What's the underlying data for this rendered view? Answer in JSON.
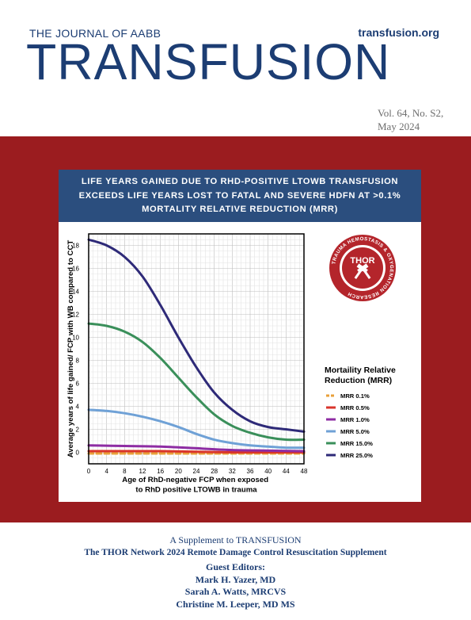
{
  "journal_label": "THE JOURNAL OF AABB",
  "website": "transfusion.org",
  "masthead": "TRANSFUSION",
  "issue": {
    "volume": "Vol. 64, No. S2,",
    "date": "May 2024"
  },
  "banner": {
    "lines": [
      "LIFE YEARS GAINED DUE TO RHD-POSITIVE LTOWB TRANSFUSION",
      "EXCEEDS LIFE YEARS LOST TO FATAL AND SEVERE HDFN AT >0.1%",
      "MORTALITY RELATIVE REDUCTION (MRR)"
    ]
  },
  "logo": {
    "center": "THOR",
    "ring": "TRAUMA HEMOSTASIS & OXYGENATION RESEARCH",
    "colors": {
      "ring": "#b4252b",
      "inner": "#ffffff"
    }
  },
  "chart_data": {
    "type": "line",
    "ylabel": "Average years of life gained/ FCP with WB compared to CCT",
    "xlabel_lines": [
      "Age of RhD-negative FCP when exposed",
      "to RhD positive LTOWB in trauma"
    ],
    "xlim": [
      0,
      48
    ],
    "ylim": [
      -1,
      19
    ],
    "xticks": [
      0,
      4,
      8,
      12,
      16,
      20,
      24,
      28,
      32,
      36,
      40,
      44,
      48
    ],
    "yticks": [
      0,
      2,
      4,
      6,
      8,
      10,
      12,
      14,
      16,
      18
    ],
    "grid": true,
    "legend_title_lines": [
      "Mortaility Relative",
      "Reduction (MRR)"
    ],
    "legend_position": "right",
    "series": [
      {
        "name": "MRR 0.1%",
        "color": "#e8a03a",
        "dashed": true,
        "x": [
          0,
          8,
          16,
          24,
          32,
          40,
          48
        ],
        "y": [
          -0.1,
          -0.1,
          -0.1,
          -0.1,
          -0.1,
          -0.1,
          -0.1
        ]
      },
      {
        "name": "MRR 0.5%",
        "color": "#d9342b",
        "dashed": false,
        "x": [
          0,
          8,
          16,
          24,
          32,
          40,
          48
        ],
        "y": [
          0.1,
          0.1,
          0.1,
          0.05,
          0.0,
          0.0,
          0.0
        ]
      },
      {
        "name": "MRR 1.0%",
        "color": "#8e2ca3",
        "dashed": false,
        "x": [
          0,
          8,
          16,
          24,
          32,
          40,
          48
        ],
        "y": [
          0.6,
          0.55,
          0.5,
          0.35,
          0.2,
          0.15,
          0.1
        ]
      },
      {
        "name": "MRR 5.0%",
        "color": "#6fa1d6",
        "dashed": false,
        "x": [
          0,
          4,
          8,
          12,
          16,
          20,
          24,
          28,
          32,
          36,
          40,
          44,
          48
        ],
        "y": [
          3.7,
          3.6,
          3.4,
          3.1,
          2.7,
          2.2,
          1.6,
          1.1,
          0.8,
          0.6,
          0.5,
          0.4,
          0.4
        ]
      },
      {
        "name": "MRR 15.0%",
        "color": "#3a8f5a",
        "dashed": false,
        "x": [
          0,
          4,
          8,
          12,
          16,
          20,
          24,
          28,
          32,
          36,
          40,
          44,
          48
        ],
        "y": [
          11.2,
          11.0,
          10.5,
          9.6,
          8.2,
          6.5,
          4.8,
          3.3,
          2.3,
          1.7,
          1.3,
          1.1,
          1.1
        ]
      },
      {
        "name": "MRR 25.0%",
        "color": "#2e2a78",
        "dashed": false,
        "x": [
          0,
          4,
          8,
          12,
          16,
          20,
          24,
          28,
          32,
          36,
          40,
          44,
          48
        ],
        "y": [
          18.5,
          18.0,
          17.0,
          15.3,
          12.8,
          10.0,
          7.4,
          5.2,
          3.7,
          2.7,
          2.2,
          2.0,
          1.8
        ]
      }
    ]
  },
  "footer": {
    "supplement_of": "A Supplement to TRANSFUSION",
    "supplement_title": "The THOR Network 2024 Remote Damage Control Resuscitation Supplement",
    "editors_label": "Guest Editors:",
    "editors": [
      "Mark H. Yazer, MD",
      "Sarah A. Watts, MRCVS",
      "Christine M. Leeper, MD MS"
    ]
  }
}
